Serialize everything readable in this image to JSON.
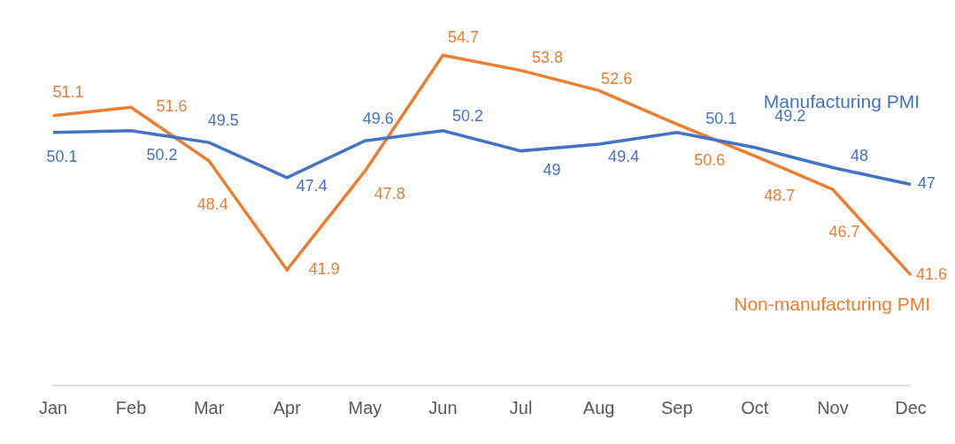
{
  "chart_data": {
    "type": "line",
    "categories": [
      "Jan",
      "Feb",
      "Mar",
      "Apr",
      "May",
      "Jun",
      "Jul",
      "Aug",
      "Sep",
      "Oct",
      "Nov",
      "Dec"
    ],
    "series": [
      {
        "name": "Manufacturing PMI",
        "color": "#4472c4",
        "values": [
          50.1,
          50.2,
          49.5,
          47.4,
          49.6,
          50.2,
          49,
          49.4,
          50.1,
          49.2,
          48,
          47
        ]
      },
      {
        "name": "Non-manufacturing PMI",
        "color": "#ed7d31",
        "values": [
          51.1,
          51.6,
          48.4,
          41.9,
          47.8,
          54.7,
          53.8,
          52.6,
          50.6,
          48.7,
          46.7,
          41.6
        ]
      }
    ],
    "ylim": [
      35,
      58
    ],
    "grid": false,
    "data_labels": true,
    "tick_labels": "x"
  }
}
